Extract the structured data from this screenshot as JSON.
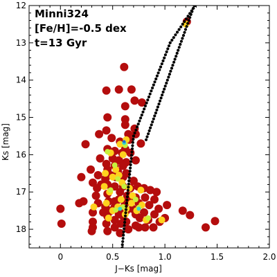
{
  "chart_data": {
    "type": "scatter",
    "annotations": [
      "Minni324",
      "[Fe/H]=-0.5 dex",
      "t=13 Gyr"
    ],
    "xlabel": "J−Ks [mag]",
    "ylabel": "Ks [mag]",
    "xlim": [
      -0.3,
      2.0
    ],
    "ylim": [
      18.5,
      12.0
    ],
    "y_inverted": true,
    "xticks": [
      0,
      0.5,
      1.0,
      1.5,
      2.0
    ],
    "xtick_labels": [
      "0",
      "0.5",
      "1.0",
      "1.5",
      "2.0"
    ],
    "yticks": [
      12,
      13,
      14,
      15,
      16,
      17,
      18
    ],
    "ytick_labels": [
      "12",
      "13",
      "14",
      "15",
      "16",
      "17",
      "18"
    ],
    "grid": false,
    "colors": {
      "stars": "#b40d0d",
      "density_mid": "#ffd21e",
      "density_high": "#c8f03c",
      "density_peak": "#3cd7c8",
      "density_max": "#1e6ed2",
      "isochrone": "#000000"
    },
    "series": [
      {
        "kind": "stars",
        "points": [
          [
            0.61,
            13.65
          ],
          [
            0.62,
            15.05
          ],
          [
            0.56,
            14.25
          ],
          [
            0.68,
            14.25
          ],
          [
            0.44,
            14.28
          ],
          [
            0.71,
            14.55
          ],
          [
            0.78,
            14.6
          ],
          [
            0.62,
            14.7
          ],
          [
            0.45,
            15.0
          ],
          [
            0.62,
            15.2
          ],
          [
            0.71,
            15.3
          ],
          [
            0.44,
            15.35
          ],
          [
            0.37,
            15.45
          ],
          [
            0.65,
            15.45
          ],
          [
            0.72,
            15.45
          ],
          [
            0.24,
            15.72
          ],
          [
            0.49,
            15.55
          ],
          [
            0.57,
            15.65
          ],
          [
            0.66,
            15.6
          ],
          [
            0.77,
            15.7
          ],
          [
            0.45,
            15.85
          ],
          [
            0.52,
            15.9
          ],
          [
            0.62,
            15.85
          ],
          [
            0.67,
            15.95
          ],
          [
            0.59,
            15.95
          ],
          [
            0.38,
            16.1
          ],
          [
            0.5,
            16.1
          ],
          [
            0.56,
            16.15
          ],
          [
            0.63,
            16.2
          ],
          [
            0.72,
            16.15
          ],
          [
            0.44,
            16.25
          ],
          [
            0.52,
            16.3
          ],
          [
            0.6,
            16.3
          ],
          [
            0.29,
            16.4
          ],
          [
            0.45,
            16.4
          ],
          [
            0.55,
            16.45
          ],
          [
            0.63,
            16.5
          ],
          [
            0.36,
            16.55
          ],
          [
            0.48,
            16.55
          ],
          [
            0.53,
            16.6
          ],
          [
            0.6,
            16.6
          ],
          [
            0.2,
            16.6
          ],
          [
            0.43,
            16.65
          ],
          [
            0.7,
            16.7
          ],
          [
            0.31,
            16.75
          ],
          [
            0.39,
            16.8
          ],
          [
            0.45,
            16.8
          ],
          [
            0.52,
            16.85
          ],
          [
            0.6,
            16.85
          ],
          [
            0.67,
            16.9
          ],
          [
            0.74,
            16.85
          ],
          [
            0.8,
            16.9
          ],
          [
            0.86,
            16.95
          ],
          [
            0.92,
            17.0
          ],
          [
            0.57,
            17.0
          ],
          [
            0.45,
            17.05
          ],
          [
            0.34,
            17.1
          ],
          [
            0.64,
            17.1
          ],
          [
            0.72,
            17.15
          ],
          [
            0.81,
            17.15
          ],
          [
            0.9,
            17.2
          ],
          [
            0.56,
            17.2
          ],
          [
            0.46,
            17.25
          ],
          [
            0.22,
            17.25
          ],
          [
            0.18,
            17.3
          ],
          [
            0.36,
            17.3
          ],
          [
            0.62,
            17.3
          ],
          [
            0.75,
            17.3
          ],
          [
            1.02,
            17.35
          ],
          [
            0.85,
            17.35
          ],
          [
            0.52,
            17.4
          ],
          [
            0.43,
            17.4
          ],
          [
            0.58,
            17.45
          ],
          [
            0.69,
            17.45
          ],
          [
            0.94,
            17.45
          ],
          [
            0.0,
            17.45
          ],
          [
            0.48,
            17.5
          ],
          [
            0.63,
            17.5
          ],
          [
            0.8,
            17.55
          ],
          [
            1.17,
            17.5
          ],
          [
            0.41,
            17.55
          ],
          [
            0.56,
            17.6
          ],
          [
            0.72,
            17.6
          ],
          [
            0.9,
            17.6
          ],
          [
            0.31,
            17.55
          ],
          [
            0.45,
            17.65
          ],
          [
            0.6,
            17.65
          ],
          [
            0.76,
            17.7
          ],
          [
            1.0,
            17.7
          ],
          [
            0.52,
            17.75
          ],
          [
            0.84,
            17.75
          ],
          [
            0.95,
            17.8
          ],
          [
            0.63,
            17.8
          ],
          [
            1.48,
            17.78
          ],
          [
            0.31,
            17.8
          ],
          [
            0.44,
            17.85
          ],
          [
            0.58,
            17.85
          ],
          [
            0.72,
            17.9
          ],
          [
            0.01,
            17.85
          ],
          [
            0.31,
            17.95
          ],
          [
            0.52,
            17.95
          ],
          [
            0.81,
            17.95
          ],
          [
            1.39,
            17.95
          ],
          [
            0.65,
            18.0
          ],
          [
            0.45,
            18.05
          ],
          [
            0.3,
            18.05
          ],
          [
            0.57,
            18.1
          ],
          [
            0.89,
            17.95
          ],
          [
            1.24,
            17.62
          ],
          [
            0.52,
            17.25
          ],
          [
            1.21,
            12.43
          ],
          [
            0.75,
            17.95
          ],
          [
            0.35,
            16.9
          ],
          [
            0.66,
            17.25
          ]
        ]
      },
      {
        "kind": "density",
        "level": "mid",
        "points": [
          [
            0.57,
            15.72
          ],
          [
            0.63,
            15.6
          ],
          [
            0.6,
            16.0
          ],
          [
            0.53,
            16.4
          ],
          [
            0.5,
            16.6
          ],
          [
            0.43,
            16.5
          ],
          [
            0.59,
            16.75
          ],
          [
            0.66,
            16.9
          ],
          [
            0.77,
            16.95
          ],
          [
            0.47,
            17.0
          ],
          [
            0.58,
            17.2
          ],
          [
            0.68,
            17.3
          ],
          [
            0.55,
            17.4
          ],
          [
            0.63,
            17.45
          ],
          [
            0.5,
            17.5
          ],
          [
            0.73,
            17.5
          ],
          [
            0.62,
            17.6
          ],
          [
            0.82,
            17.75
          ],
          [
            0.46,
            17.7
          ],
          [
            0.97,
            17.75
          ],
          [
            0.42,
            16.85
          ],
          [
            0.32,
            17.4
          ],
          [
            1.2,
            12.5
          ],
          [
            0.69,
            17.1
          ],
          [
            0.44,
            17.3
          ],
          [
            0.48,
            15.95
          ],
          [
            0.56,
            16.55
          ],
          [
            0.78,
            17.35
          ]
        ]
      },
      {
        "kind": "density",
        "level": "high",
        "points": [
          [
            0.45,
            15.92
          ],
          [
            0.52,
            16.28
          ],
          [
            0.55,
            16.65
          ],
          [
            0.61,
            16.85
          ],
          [
            0.53,
            17.48
          ],
          [
            0.6,
            17.4
          ],
          [
            0.75,
            17.42
          ],
          [
            0.72,
            17.2
          ],
          [
            0.48,
            16.95
          ],
          [
            0.62,
            15.75
          ],
          [
            0.84,
            17.7
          ]
        ]
      },
      {
        "kind": "density",
        "level": "peak",
        "points": [
          [
            0.61,
            15.68
          ],
          [
            0.75,
            17.45
          ],
          [
            0.57,
            17.45
          ]
        ]
      },
      {
        "kind": "density",
        "level": "max",
        "points": [
          [
            0.61,
            15.65
          ]
        ]
      },
      {
        "kind": "isochrone",
        "segments": [
          {
            "from": [
              0.59,
              18.5
            ],
            "to": [
              0.7,
              15.5
            ]
          },
          {
            "from": [
              0.7,
              15.5
            ],
            "to": [
              1.05,
              13.0
            ]
          },
          {
            "from": [
              1.05,
              13.0
            ],
            "to": [
              1.29,
              12.0
            ]
          },
          {
            "from": [
              0.82,
              15.6
            ],
            "to": [
              1.28,
              12.0
            ]
          }
        ]
      }
    ]
  }
}
